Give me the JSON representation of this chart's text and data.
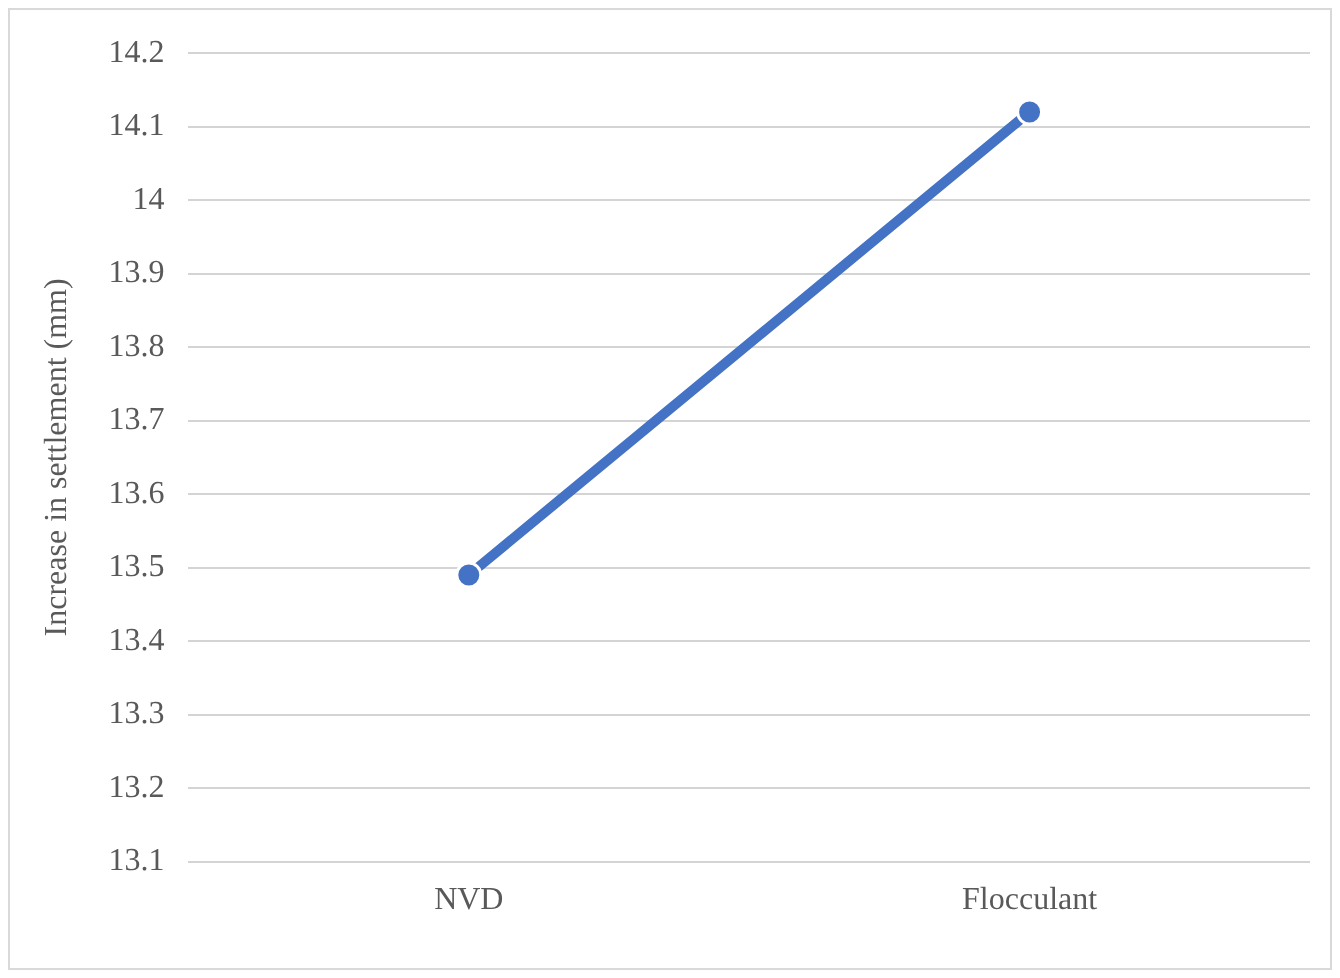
{
  "chart_data": {
    "type": "line",
    "ylabel": "Increase in settlement (mm)",
    "categories": [
      "NVD",
      "Flocculant"
    ],
    "series": [
      {
        "color": "#4472c4",
        "values": [
          13.49,
          14.12
        ]
      }
    ],
    "ylim": [
      13.1,
      14.2
    ],
    "yticks": [
      {
        "value": 13.1,
        "label": "13.1"
      },
      {
        "value": 13.2,
        "label": "13.2"
      },
      {
        "value": 13.3,
        "label": "13.3"
      },
      {
        "value": 13.4,
        "label": "13.4"
      },
      {
        "value": 13.5,
        "label": "13.5"
      },
      {
        "value": 13.6,
        "label": "13.6"
      },
      {
        "value": 13.7,
        "label": "13.7"
      },
      {
        "value": 13.8,
        "label": "13.8"
      },
      {
        "value": 13.9,
        "label": "13.9"
      },
      {
        "value": 14,
        "label": "14"
      },
      {
        "value": 14.1,
        "label": "14.1"
      },
      {
        "value": 14.2,
        "label": "14.2"
      }
    ],
    "grid": "y",
    "legend": false,
    "marker": "circle",
    "line_style": "solid"
  }
}
